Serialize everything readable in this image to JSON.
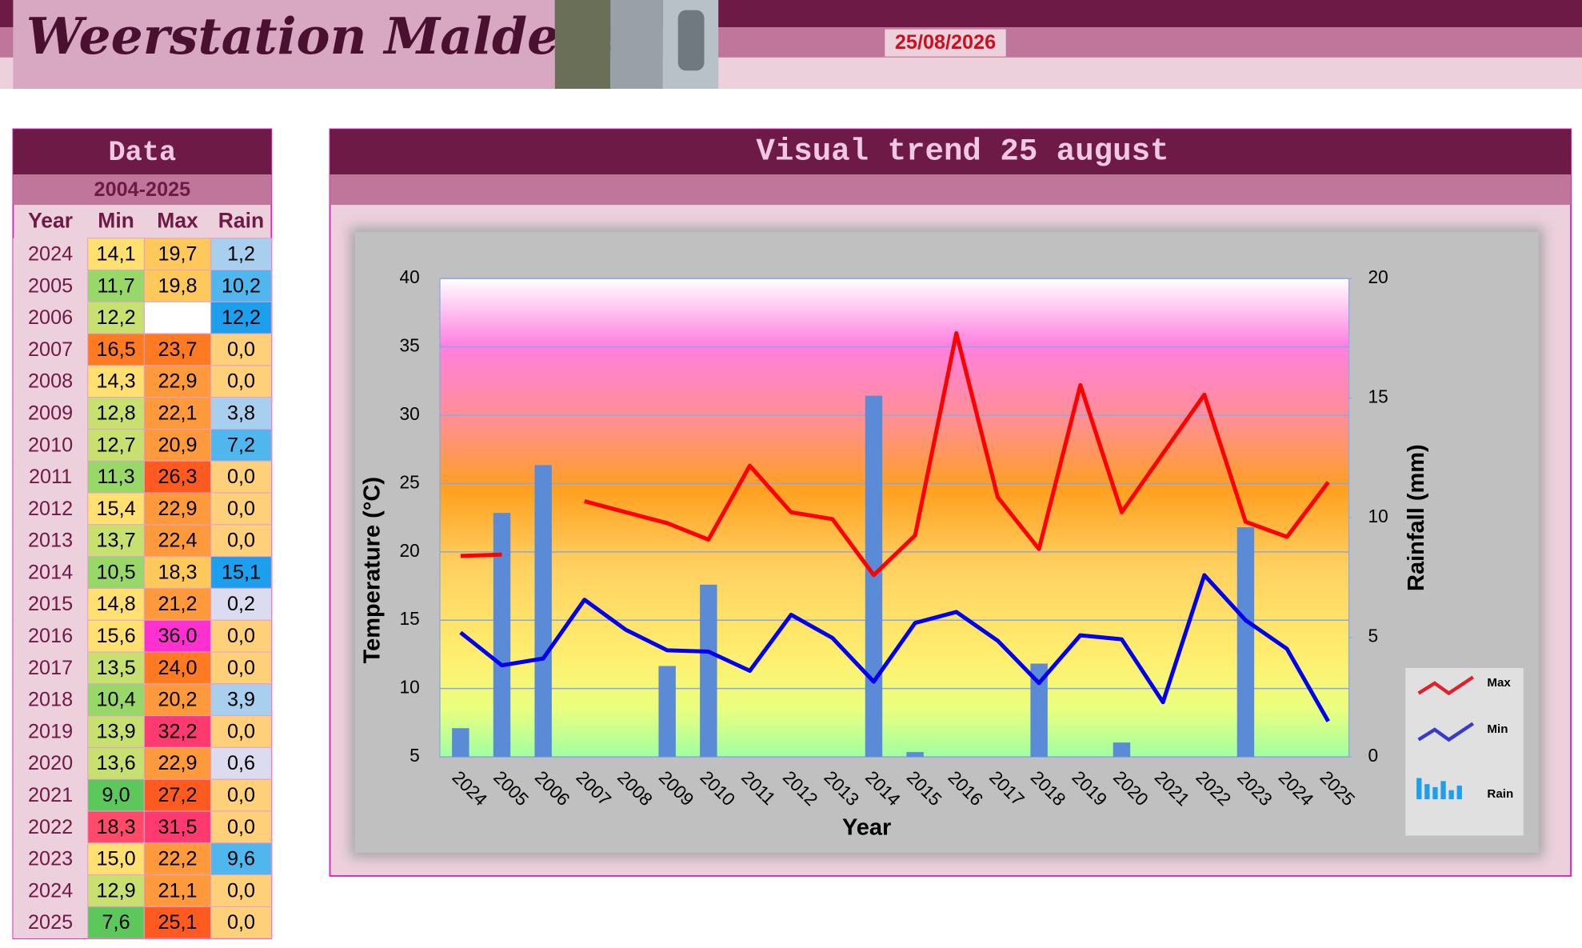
{
  "header": {
    "title": "Weerstation Malderen",
    "date": "25/08/2026"
  },
  "table": {
    "title": "Data",
    "subtitle": "2004-2025",
    "columns": [
      "Year",
      "Min",
      "Max",
      "Rain"
    ],
    "rows": [
      [
        "2024",
        "14,1",
        "19,7",
        "1,2"
      ],
      [
        "2005",
        "11,7",
        "19,8",
        "10,2"
      ],
      [
        "2006",
        "12,2",
        null,
        "12,2"
      ],
      [
        "2007",
        "16,5",
        "23,7",
        "0,0"
      ],
      [
        "2008",
        "14,3",
        "22,9",
        "0,0"
      ],
      [
        "2009",
        "12,8",
        "22,1",
        "3,8"
      ],
      [
        "2010",
        "12,7",
        "20,9",
        "7,2"
      ],
      [
        "2011",
        "11,3",
        "26,3",
        "0,0"
      ],
      [
        "2012",
        "15,4",
        "22,9",
        "0,0"
      ],
      [
        "2013",
        "13,7",
        "22,4",
        "0,0"
      ],
      [
        "2014",
        "10,5",
        "18,3",
        "15,1"
      ],
      [
        "2015",
        "14,8",
        "21,2",
        "0,2"
      ],
      [
        "2016",
        "15,6",
        "36,0",
        "0,0"
      ],
      [
        "2017",
        "13,5",
        "24,0",
        "0,0"
      ],
      [
        "2018",
        "10,4",
        "20,2",
        "3,9"
      ],
      [
        "2019",
        "13,9",
        "32,2",
        "0,0"
      ],
      [
        "2020",
        "13,6",
        "22,9",
        "0,6"
      ],
      [
        "2021",
        "9,0",
        "27,2",
        "0,0"
      ],
      [
        "2022",
        "18,3",
        "31,5",
        "0,0"
      ],
      [
        "2023",
        "15,0",
        "22,2",
        "9,6"
      ],
      [
        "2024",
        "12,9",
        "21,1",
        "0,0"
      ],
      [
        "2025",
        "7,6",
        "25,1",
        "0,0"
      ]
    ]
  },
  "chart_data": {
    "type": "line",
    "title": "Visual trend 25 august",
    "x_label": "Year",
    "y_label": "Temperature (°C)",
    "y2_label": "Rainfall (mm)",
    "categories": [
      "2024",
      "2005",
      "2006",
      "2007",
      "2008",
      "2009",
      "2010",
      "2011",
      "2012",
      "2013",
      "2014",
      "2015",
      "2016",
      "2017",
      "2018",
      "2019",
      "2020",
      "2021",
      "2022",
      "2023",
      "2024",
      "2025"
    ],
    "series": [
      {
        "name": "Max",
        "color": "#ff0000",
        "values": [
          19.7,
          19.8,
          null,
          23.7,
          22.9,
          22.1,
          20.9,
          26.3,
          22.9,
          22.4,
          18.3,
          21.2,
          36.0,
          24.0,
          20.2,
          32.2,
          22.9,
          27.2,
          31.5,
          22.2,
          21.1,
          25.1
        ]
      },
      {
        "name": "Min",
        "color": "#0000ee",
        "values": [
          14.1,
          11.7,
          12.2,
          16.5,
          14.3,
          12.8,
          12.7,
          11.3,
          15.4,
          13.7,
          10.5,
          14.8,
          15.6,
          13.5,
          10.4,
          13.9,
          13.6,
          9.0,
          18.3,
          15.0,
          12.9,
          7.6
        ]
      },
      {
        "name": "Rain",
        "color": "#5b8bd6",
        "type": "bar",
        "axis": "y2",
        "values": [
          1.2,
          10.2,
          12.2,
          0,
          0,
          3.8,
          7.2,
          0,
          0,
          0,
          15.1,
          0.2,
          0,
          0,
          3.9,
          0,
          0.6,
          0,
          0,
          9.6,
          0,
          0
        ]
      }
    ],
    "ylim": [
      5,
      40
    ],
    "yticks": [
      5,
      10,
      15,
      20,
      25,
      30,
      35,
      40
    ],
    "y2lim": [
      0,
      20
    ],
    "y2ticks": [
      0,
      5,
      10,
      15,
      20
    ],
    "grid": true
  }
}
